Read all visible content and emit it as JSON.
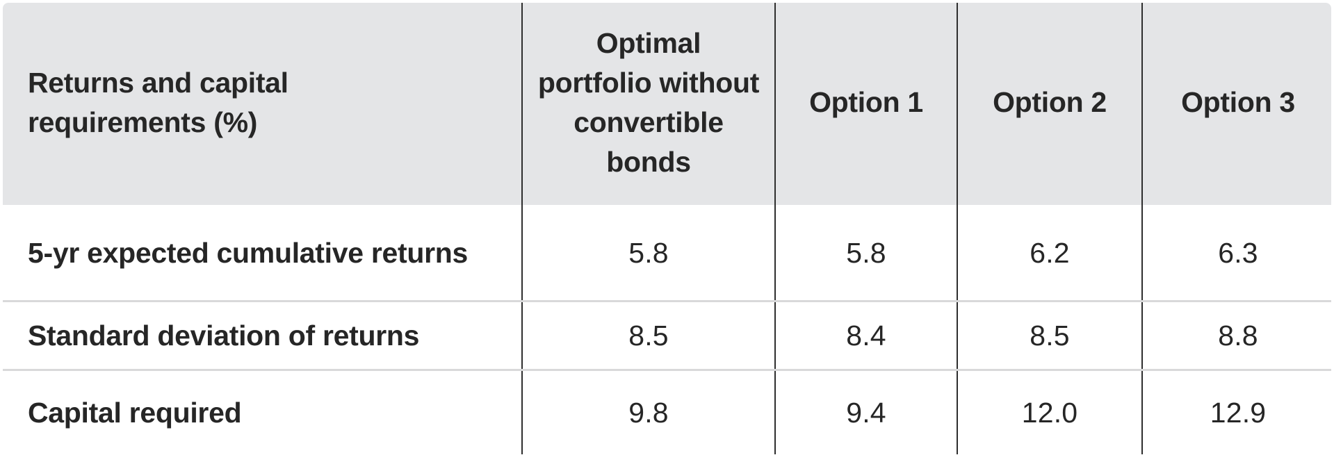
{
  "table": {
    "header": {
      "row_label": "Returns and capital\nrequirements (%)",
      "columns": [
        "Optimal\nportfolio without\nconvertible\nbonds",
        "Option 1",
        "Option 2",
        "Option 3"
      ]
    },
    "rows": [
      {
        "label": "5-yr expected cumulative returns",
        "values": [
          "5.8",
          "5.8",
          "6.2",
          "6.3"
        ]
      },
      {
        "label": "Standard deviation of returns",
        "values": [
          "8.5",
          "8.4",
          "8.5",
          "8.8"
        ]
      },
      {
        "label": "Capital required",
        "values": [
          "9.8",
          "9.4",
          "12.0",
          "12.9"
        ]
      }
    ]
  },
  "colors": {
    "header_bg": "#e4e5e7",
    "divider_dark": "#2e2e2e",
    "divider_light": "#d9d9da",
    "text": "#262626"
  },
  "chart_data": {
    "type": "table",
    "title": "Returns and capital requirements (%)",
    "columns": [
      "Returns and capital requirements (%)",
      "Optimal portfolio without convertible bonds",
      "Option 1",
      "Option 2",
      "Option 3"
    ],
    "rows": [
      [
        "5-yr expected cumulative returns",
        5.8,
        5.8,
        6.2,
        6.3
      ],
      [
        "Standard deviation of returns",
        8.5,
        8.4,
        8.5,
        8.8
      ],
      [
        "Capital required",
        9.8,
        9.4,
        12.0,
        12.9
      ]
    ],
    "legend_position": "none",
    "grid": "horizontal-light, vertical-dark column dividers",
    "header_style": "gray band, bold text",
    "value_format": "percent, one decimal"
  }
}
